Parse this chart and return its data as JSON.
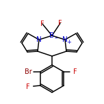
{
  "bg_color": "#ffffff",
  "bond_color": "#000000",
  "N_color": "#0000cc",
  "B_color": "#0000cc",
  "Br_color": "#8b0000",
  "F_color": "#cc0000",
  "line_width": 1.1,
  "figsize": [
    1.52,
    1.52
  ],
  "dpi": 100,
  "xlim": [
    0,
    152
  ],
  "ylim": [
    0,
    152
  ]
}
